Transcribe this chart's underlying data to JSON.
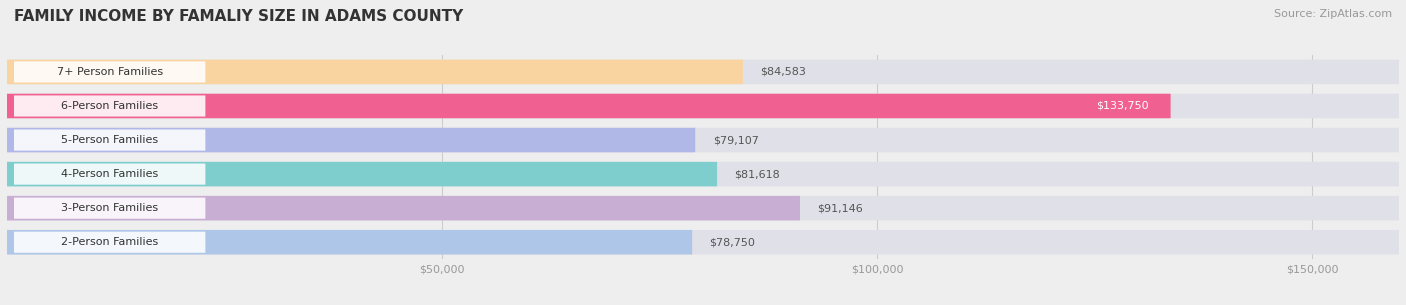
{
  "title": "FAMILY INCOME BY FAMALIY SIZE IN ADAMS COUNTY",
  "source": "Source: ZipAtlas.com",
  "categories": [
    "2-Person Families",
    "3-Person Families",
    "4-Person Families",
    "5-Person Families",
    "6-Person Families",
    "7+ Person Families"
  ],
  "values": [
    78750,
    91146,
    81618,
    79107,
    133750,
    84583
  ],
  "bar_colors": [
    "#aec6e8",
    "#c9aed4",
    "#7ecece",
    "#b0b8e8",
    "#f06090",
    "#f9d4a0"
  ],
  "label_colors": [
    "#333333",
    "#333333",
    "#333333",
    "#333333",
    "#ffffff",
    "#333333"
  ],
  "value_labels": [
    "$78,750",
    "$91,146",
    "$81,618",
    "$79,107",
    "$133,750",
    "$84,583"
  ],
  "value_inside": [
    false,
    false,
    false,
    false,
    true,
    false
  ],
  "xlim": [
    0,
    160000
  ],
  "xticks": [
    50000,
    100000,
    150000
  ],
  "xtick_labels": [
    "$50,000",
    "$100,000",
    "$150,000"
  ],
  "background_color": "#eeeeee",
  "bar_bg_color": "#e0e0e8",
  "title_fontsize": 11,
  "source_fontsize": 8,
  "label_fontsize": 8,
  "value_fontsize": 8
}
